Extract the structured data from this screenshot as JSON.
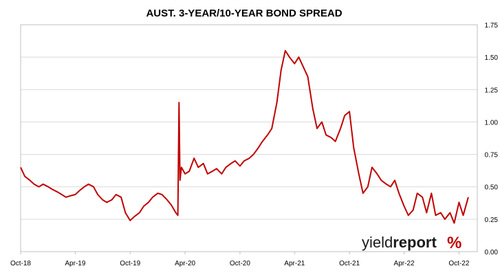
{
  "chart_data": {
    "type": "line",
    "title": "AUST. 3-YEAR/10-YEAR BOND SPREAD",
    "xlabel": "",
    "ylabel": "",
    "ylim": [
      0,
      1.75
    ],
    "y_ticks": [
      "0.00",
      "0.25",
      "0.50",
      "0.75",
      "1.00",
      "1.25",
      "1.50",
      "1.75"
    ],
    "x_ticks": [
      "Oct-18",
      "Apr-19",
      "Oct-19",
      "Apr-20",
      "Oct-20",
      "Apr-21",
      "Oct-21",
      "Apr-22",
      "Oct-22"
    ],
    "x_range": [
      "2018-10-01",
      "2022-12-01"
    ],
    "grid": true,
    "y_axis_side": "right",
    "line_color": "#c00000",
    "series": [
      {
        "x": [
          "2018-10-01",
          "2018-10-15",
          "2018-11-01",
          "2018-11-15",
          "2018-12-01",
          "2018-12-15",
          "2019-01-01",
          "2019-01-15",
          "2019-02-01",
          "2019-02-15",
          "2019-03-01",
          "2019-03-15",
          "2019-04-01",
          "2019-04-15",
          "2019-05-01",
          "2019-05-15",
          "2019-06-01",
          "2019-06-15",
          "2019-07-01",
          "2019-07-15",
          "2019-08-01",
          "2019-08-15",
          "2019-09-01",
          "2019-09-15",
          "2019-10-01",
          "2019-10-15",
          "2019-11-01",
          "2019-11-15",
          "2019-12-01",
          "2019-12-15",
          "2020-01-01",
          "2020-01-15",
          "2020-02-01",
          "2020-02-15",
          "2020-03-01",
          "2020-03-08",
          "2020-03-12",
          "2020-03-15",
          "2020-03-20",
          "2020-04-01",
          "2020-04-15",
          "2020-05-01",
          "2020-05-15",
          "2020-06-01",
          "2020-06-15",
          "2020-07-01",
          "2020-07-15",
          "2020-08-01",
          "2020-08-15",
          "2020-09-01",
          "2020-09-15",
          "2020-10-01",
          "2020-10-15",
          "2020-11-01",
          "2020-11-15",
          "2020-12-01",
          "2020-12-15",
          "2021-01-01",
          "2021-01-15",
          "2021-02-01",
          "2021-02-15",
          "2021-03-01",
          "2021-03-15",
          "2021-04-01",
          "2021-04-15",
          "2021-05-01",
          "2021-05-15",
          "2021-06-01",
          "2021-06-15",
          "2021-07-01",
          "2021-07-15",
          "2021-08-01",
          "2021-08-15",
          "2021-09-01",
          "2021-09-15",
          "2021-10-01",
          "2021-10-15",
          "2021-11-01",
          "2021-11-15",
          "2021-12-01",
          "2021-12-15",
          "2022-01-01",
          "2022-01-15",
          "2022-02-01",
          "2022-02-15",
          "2022-03-01",
          "2022-03-15",
          "2022-04-01",
          "2022-04-15",
          "2022-05-01",
          "2022-05-15",
          "2022-06-01",
          "2022-06-15",
          "2022-07-01",
          "2022-07-15",
          "2022-08-01",
          "2022-08-15",
          "2022-09-01",
          "2022-09-15",
          "2022-10-01",
          "2022-10-15",
          "2022-11-01"
        ],
        "values": [
          0.65,
          0.58,
          0.55,
          0.52,
          0.5,
          0.52,
          0.5,
          0.48,
          0.46,
          0.44,
          0.42,
          0.43,
          0.44,
          0.47,
          0.5,
          0.52,
          0.5,
          0.44,
          0.4,
          0.38,
          0.4,
          0.44,
          0.42,
          0.3,
          0.24,
          0.27,
          0.3,
          0.35,
          0.38,
          0.42,
          0.45,
          0.44,
          0.4,
          0.36,
          0.3,
          0.28,
          1.15,
          0.55,
          0.65,
          0.6,
          0.62,
          0.72,
          0.65,
          0.68,
          0.6,
          0.62,
          0.64,
          0.6,
          0.65,
          0.68,
          0.7,
          0.66,
          0.7,
          0.72,
          0.75,
          0.8,
          0.85,
          0.9,
          0.95,
          1.15,
          1.4,
          1.55,
          1.5,
          1.45,
          1.5,
          1.42,
          1.35,
          1.1,
          0.95,
          1.0,
          0.9,
          0.88,
          0.85,
          0.95,
          1.05,
          1.08,
          0.8,
          0.6,
          0.45,
          0.5,
          0.65,
          0.6,
          0.55,
          0.52,
          0.5,
          0.55,
          0.45,
          0.35,
          0.28,
          0.32,
          0.45,
          0.42,
          0.3,
          0.45,
          0.28,
          0.3,
          0.25,
          0.3,
          0.22,
          0.38,
          0.28,
          0.42
        ]
      }
    ]
  },
  "logo": {
    "word_regular": "yield",
    "word_bold": "report",
    "symbol": "%"
  }
}
